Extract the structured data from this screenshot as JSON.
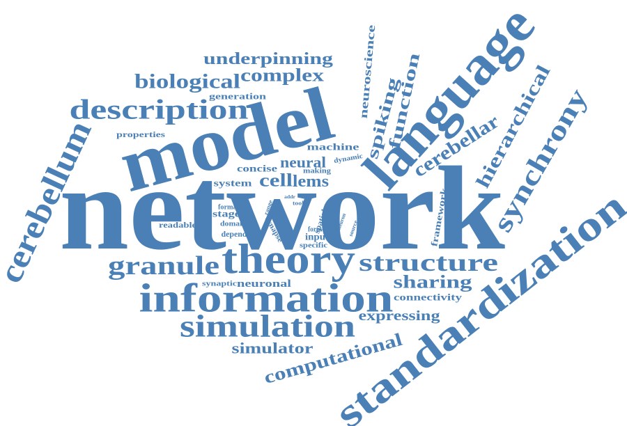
{
  "words": [
    "network",
    "model",
    "language",
    "standardization",
    "cerebellum",
    "theory",
    "information",
    "simulation",
    "description",
    "biological",
    "complex",
    "underpinning",
    "generation",
    "properties",
    "structure",
    "granule",
    "sharing",
    "connectivity",
    "expressing",
    "simulator",
    "computational",
    "synchrony",
    "hierarchical",
    "cerebellar",
    "spiking",
    "function",
    "neuroscience",
    "framework",
    "machine",
    "neural",
    "dynamic",
    "concise",
    "cell",
    "lems",
    "system",
    "making",
    "addr",
    "tool",
    "format",
    "range",
    "spatial",
    "neuron",
    "source",
    "stage",
    "domain",
    "depend",
    "readable",
    "synapse",
    "form",
    "input",
    "specific",
    "synaptic",
    "neuronal"
  ]
}
